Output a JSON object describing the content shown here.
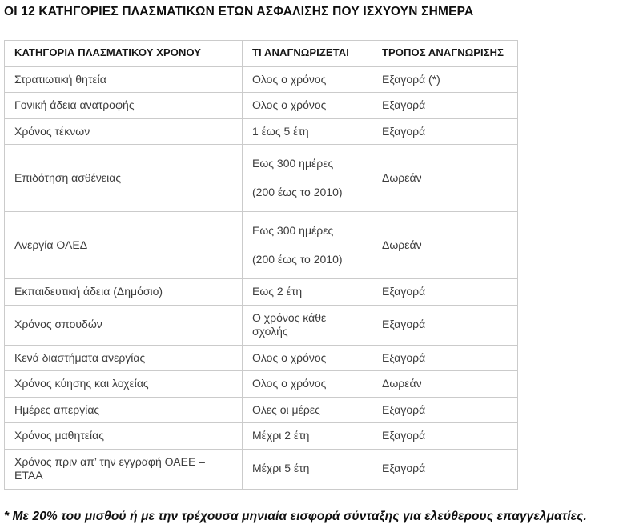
{
  "page": {
    "title": "ΟΙ 12 ΚΑΤΗΓΟΡΙΕΣ ΠΛΑΣΜΑΤΙΚΩΝ ΕΤΩΝ ΑΣΦΑΛΙΣΗΣ ΠΟΥ ΙΣΧΥΟΥΝ ΣΗΜΕΡΑ",
    "footnote": "* Με 20% του μισθού ή με την τρέχουσα μηνιαία εισφορά σύνταξης για ελεύθερους επαγγελματίες."
  },
  "table": {
    "columns": [
      "ΚΑΤΗΓΟΡΙΑ ΠΛΑΣΜΑΤΙΚΟΥ ΧΡΟΝΟΥ",
      "ΤΙ ΑΝΑΓΝΩΡΙΖΕΤΑΙ",
      "ΤΡΟΠΟΣ ΑΝΑΓΝΩΡΙΣΗΣ"
    ],
    "rows": [
      {
        "category": "Στρατιωτική θητεία",
        "recognized": [
          "Ολος ο χρόνος"
        ],
        "method": "Εξαγορά (*)"
      },
      {
        "category": "Γονική άδεια ανατροφής",
        "recognized": [
          "Ολος ο χρόνος"
        ],
        "method": "Εξαγορά"
      },
      {
        "category": "Χρόνος τέκνων",
        "recognized": [
          "1 έως 5 έτη"
        ],
        "method": "Εξαγορά"
      },
      {
        "category": "Επιδότηση ασθένειας",
        "recognized": [
          "Εως 300 ημέρες",
          "(200 έως το 2010)"
        ],
        "method": "Δωρεάν"
      },
      {
        "category": "Ανεργία ΟΑΕΔ",
        "recognized": [
          "Εως 300 ημέρες",
          "(200 έως το 2010)"
        ],
        "method": "Δωρεάν"
      },
      {
        "category": "Εκπαιδευτική άδεια (Δημόσιο)",
        "recognized": [
          "Εως 2 έτη"
        ],
        "method": "Εξαγορά"
      },
      {
        "category": "Χρόνος σπουδών",
        "recognized": [
          "Ο χρόνος κάθε σχολής"
        ],
        "method": "Εξαγορά"
      },
      {
        "category": "Κενά διαστήματα ανεργίας",
        "recognized": [
          "Ολος ο χρόνος"
        ],
        "method": "Εξαγορά"
      },
      {
        "category": "Χρόνος κύησης και λοχείας",
        "recognized": [
          "Ολος ο χρόνος"
        ],
        "method": "Δωρεάν"
      },
      {
        "category": "Ημέρες απεργίας",
        "recognized": [
          "Ολες οι μέρες"
        ],
        "method": "Εξαγορά"
      },
      {
        "category": "Χρόνος μαθητείας",
        "recognized": [
          "Μέχρι 2 έτη"
        ],
        "method": "Εξαγορά"
      },
      {
        "category": "Χρόνος πριν απ’ την εγγραφή ΟΑΕΕ – ΕΤΑΑ",
        "recognized": [
          "Μέχρι 5 έτη"
        ],
        "method": "Εξαγορά"
      }
    ]
  },
  "colors": {
    "background": "#ffffff",
    "border": "#cbcbcb",
    "body_text": "#3d3d3d",
    "heading_text": "#0f0f0f"
  }
}
